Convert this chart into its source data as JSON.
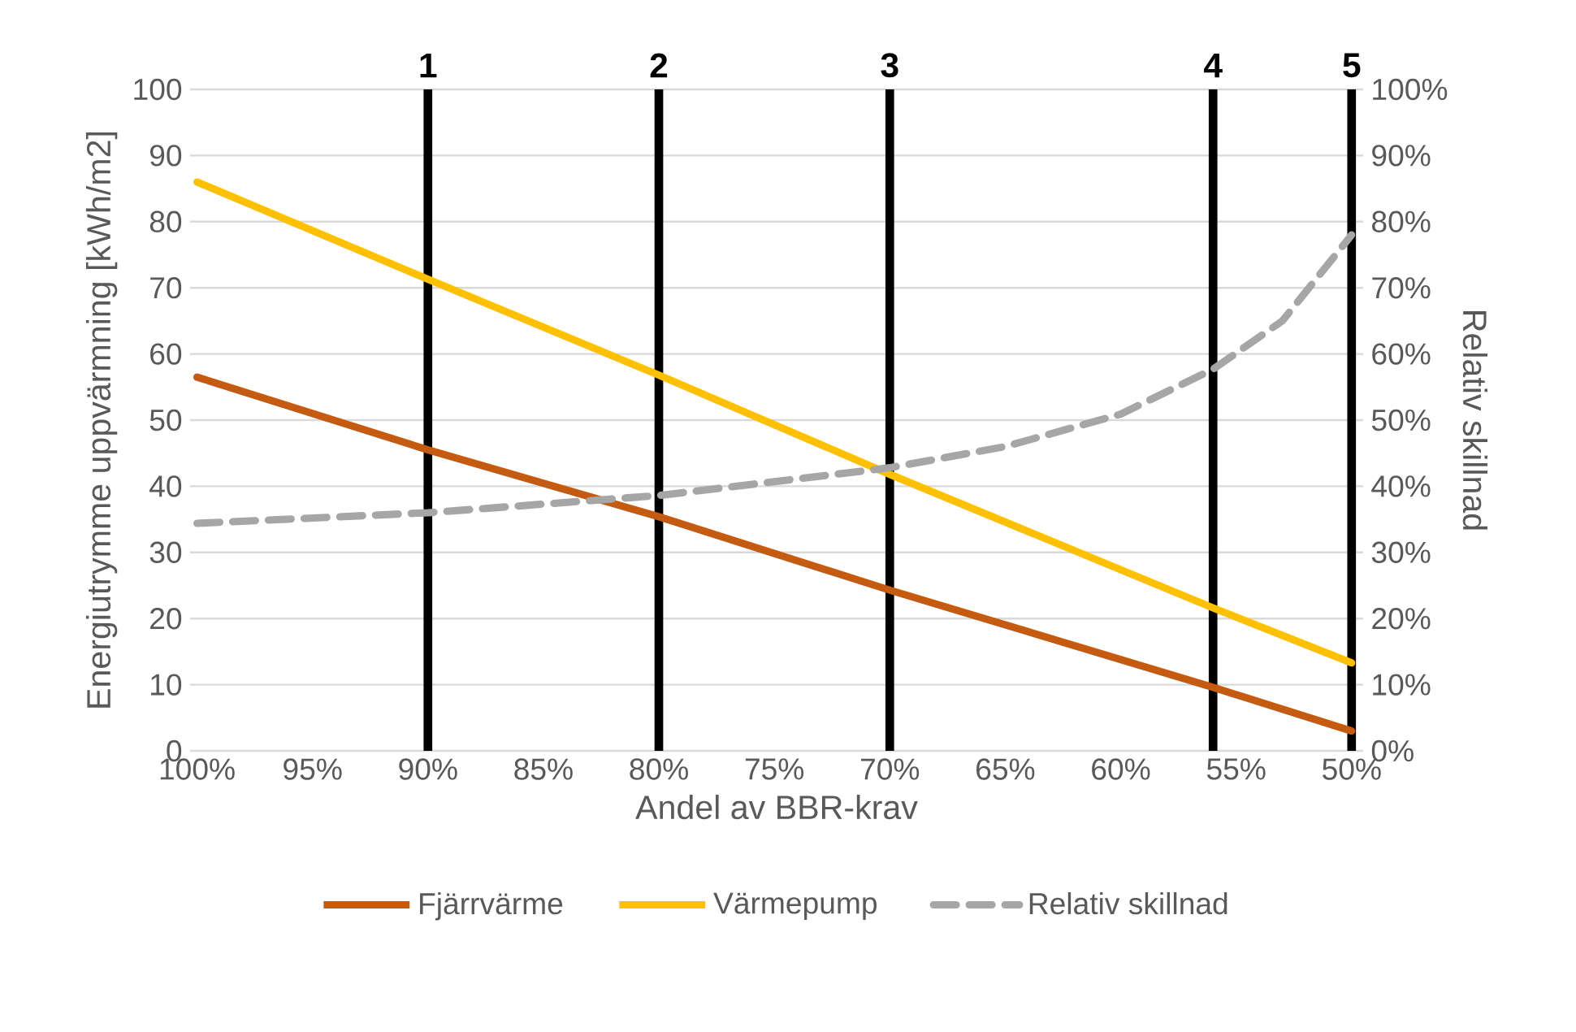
{
  "chart_data": {
    "type": "line",
    "xlabel": "Andel av BBR-krav",
    "ylabel": "Energiutrymme uppvärmning  [kWh/m2]",
    "y2label": "Relativ skillnad",
    "xlim": [
      100.3,
      49.5
    ],
    "xticks": [
      {
        "value": 100,
        "label": "100%"
      },
      {
        "value": 95,
        "label": "95%"
      },
      {
        "value": 90,
        "label": "90%"
      },
      {
        "value": 85,
        "label": "85%"
      },
      {
        "value": 80,
        "label": "80%"
      },
      {
        "value": 75,
        "label": "75%"
      },
      {
        "value": 70,
        "label": "70%"
      },
      {
        "value": 65,
        "label": "65%"
      },
      {
        "value": 60,
        "label": "60%"
      },
      {
        "value": 55,
        "label": "55%"
      },
      {
        "value": 50,
        "label": "50%"
      }
    ],
    "ylim": [
      0,
      100
    ],
    "yticks": [
      0,
      10,
      20,
      30,
      40,
      50,
      60,
      70,
      80,
      90,
      100
    ],
    "y2lim": [
      0,
      100
    ],
    "y2ticks": [
      {
        "value": 0,
        "label": "0%"
      },
      {
        "value": 10,
        "label": "10%"
      },
      {
        "value": 20,
        "label": "20%"
      },
      {
        "value": 30,
        "label": "30%"
      },
      {
        "value": 40,
        "label": "40%"
      },
      {
        "value": 50,
        "label": "50%"
      },
      {
        "value": 60,
        "label": "60%"
      },
      {
        "value": 70,
        "label": "70%"
      },
      {
        "value": 80,
        "label": "80%"
      },
      {
        "value": 90,
        "label": "90%"
      },
      {
        "value": 100,
        "label": "100%"
      }
    ],
    "grid": "y",
    "legend": "bottom",
    "marker": "none",
    "series": [
      {
        "name": "Fjärrvärme",
        "color": "#c55a11",
        "x": [
          100,
          90,
          80,
          70,
          56,
          50
        ],
        "values": [
          56.5,
          45.5,
          35.4,
          24.3,
          9.6,
          3
        ]
      },
      {
        "name": "Värmepump",
        "color": "#ffc000",
        "x": [
          100,
          90,
          80,
          70,
          56,
          50
        ],
        "values": [
          86,
          71.3,
          56.8,
          41.8,
          21.6,
          13.3
        ]
      },
      {
        "name": "Relativ skillnad",
        "color": "#a6a6a6",
        "axis": "y2",
        "line_style": "dashed",
        "x": [
          100,
          90,
          80,
          70,
          65,
          60,
          56,
          53,
          50
        ],
        "values": [
          34.4,
          36,
          38.6,
          42.8,
          46,
          50.9,
          57.7,
          65,
          78
        ]
      }
    ],
    "ref_lines": [
      {
        "axis": "x",
        "value": 90,
        "color": "#000000"
      },
      {
        "axis": "x",
        "value": 80,
        "color": "#000000"
      },
      {
        "axis": "x",
        "value": 70,
        "color": "#000000"
      },
      {
        "axis": "x",
        "value": 56,
        "color": "#000000"
      },
      {
        "axis": "x",
        "value": 50,
        "color": "#000000"
      }
    ],
    "annotations": [
      {
        "text": "1",
        "x": 90,
        "y": 100
      },
      {
        "text": "2",
        "x": 80,
        "y": 100
      },
      {
        "text": "3",
        "x": 70,
        "y": 100
      },
      {
        "text": "4",
        "x": 56,
        "y": 100
      },
      {
        "text": "5",
        "x": 50,
        "y": 100
      }
    ]
  }
}
